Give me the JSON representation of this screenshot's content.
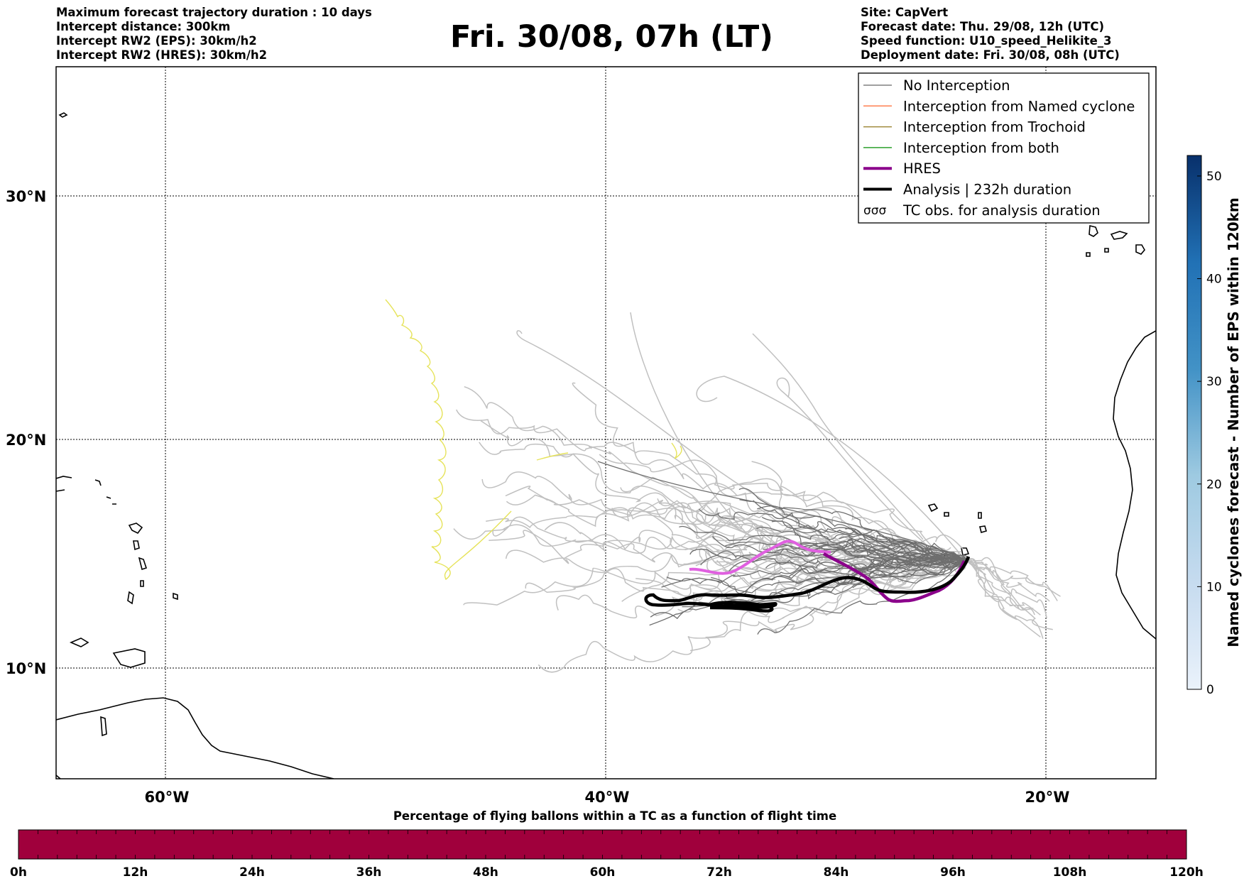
{
  "header_left": [
    "Maximum forecast trajectory duration : 10 days",
    "Intercept distance: 300km",
    "Intercept RW2 (EPS):  30km/h2",
    "Intercept RW2 (HRES): 30km/h2"
  ],
  "title": "Fri. 30/08, 07h (LT)",
  "header_right": [
    "Site: CapVert",
    "Forecast date: Thu. 29/08, 12h (UTC)",
    "Speed function: U10_speed_Helikite_3",
    "Deployment date: Fri. 30/08, 08h (UTC)"
  ],
  "map": {
    "lat_labels": [
      "30°N",
      "20°N",
      "10°N"
    ],
    "lon_labels": [
      "60°W",
      "40°W",
      "20°W"
    ],
    "extent": {
      "lon_min": -65,
      "lon_max": -15,
      "lat_min": 5.5,
      "lat_max": 35.3
    }
  },
  "legend": [
    {
      "label": "No Interception",
      "color": "#808080",
      "style": "thin"
    },
    {
      "label": "Interception from Named cyclone",
      "color": "#ff7f50",
      "style": "thin"
    },
    {
      "label": "Interception from Trochoid",
      "color": "#a08a3c",
      "style": "thin"
    },
    {
      "label": "Interception from both",
      "color": "#2ca02c",
      "style": "thin"
    },
    {
      "label": "HRES",
      "color": "#8b008b",
      "style": "thick"
    },
    {
      "label": "Analysis | 232h duration",
      "color": "#000000",
      "style": "thick"
    },
    {
      "label": "TC obs. for analysis duration",
      "color": "#000000",
      "style": "loops"
    }
  ],
  "colorbar_vertical": {
    "label": "Named cyclones forecast - Number of EPS within 120km",
    "ticks": [
      "0",
      "10",
      "20",
      "30",
      "40",
      "50"
    ],
    "min": 0,
    "max": 52,
    "color_low": "#e8f0fa",
    "color_high": "#08306b"
  },
  "colorbar_horizontal": {
    "title": "Percentage of flying ballons within a TC as a function of flight time",
    "ticks": [
      "0h",
      "12h",
      "24h",
      "36h",
      "48h",
      "60h",
      "72h",
      "84h",
      "96h",
      "108h",
      "120h"
    ],
    "fill_color": "#a0003c"
  }
}
